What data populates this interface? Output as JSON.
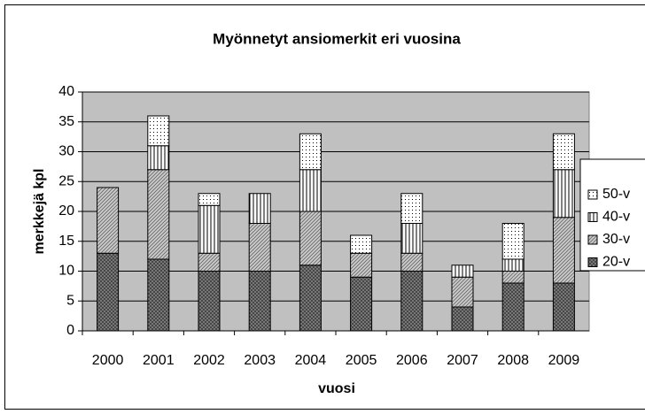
{
  "chart_data": {
    "type": "stacked_bar",
    "title": "Myönnetyt ansiomerkit eri vuosina",
    "x_label": "vuosi",
    "y_label": "merkkejä kpl",
    "categories": [
      "2000",
      "2001",
      "2002",
      "2003",
      "2004",
      "2005",
      "2006",
      "2007",
      "2008",
      "2009"
    ],
    "series": [
      {
        "name": "20-v",
        "color": "#808080",
        "values": [
          13,
          12,
          10,
          10,
          11,
          9,
          10,
          4,
          8,
          8
        ]
      },
      {
        "name": "30-v",
        "color": "#c8c8c8",
        "values": [
          11,
          15,
          3,
          8,
          9,
          4,
          3,
          5,
          2,
          11
        ]
      },
      {
        "name": "40-v",
        "color": "#ffffff",
        "values": [
          0,
          4,
          8,
          5,
          7,
          0,
          5,
          2,
          2,
          8
        ]
      },
      {
        "name": "50-v",
        "color": "#ffffff",
        "values": [
          0,
          5,
          2,
          0,
          6,
          3,
          5,
          0,
          6,
          6
        ]
      }
    ],
    "ylim": [
      0,
      40
    ],
    "yticks": [
      0,
      5,
      10,
      15,
      20,
      25,
      30,
      35,
      40
    ],
    "grid": true,
    "plot_background": "#c0c0c0",
    "legend": "right"
  }
}
